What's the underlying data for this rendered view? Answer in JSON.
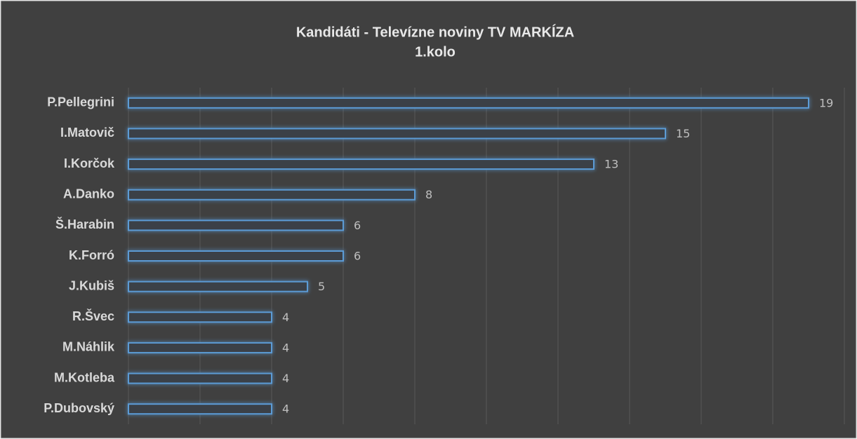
{
  "chart_data": {
    "type": "barh",
    "title": "Kandidáti - Televízne noviny TV MARKÍZA",
    "subtitle": "1.kolo",
    "categories": [
      "P.Pellegrini",
      "I.Matovič",
      "I.Korčok",
      "A.Danko",
      "Š.Harabin",
      "K.Forró",
      "J.Kubiš",
      "R.Švec",
      "M.Náhlik",
      "M.Kotleba",
      "P.Dubovský"
    ],
    "values": [
      19,
      15,
      13,
      8,
      6,
      6,
      5,
      4,
      4,
      4,
      4
    ],
    "color": "#5b9bd5",
    "xlim": [
      0,
      20
    ],
    "xticks": [
      0,
      2,
      4,
      6,
      8,
      10,
      12,
      14,
      16,
      18,
      20
    ],
    "grid": true
  }
}
